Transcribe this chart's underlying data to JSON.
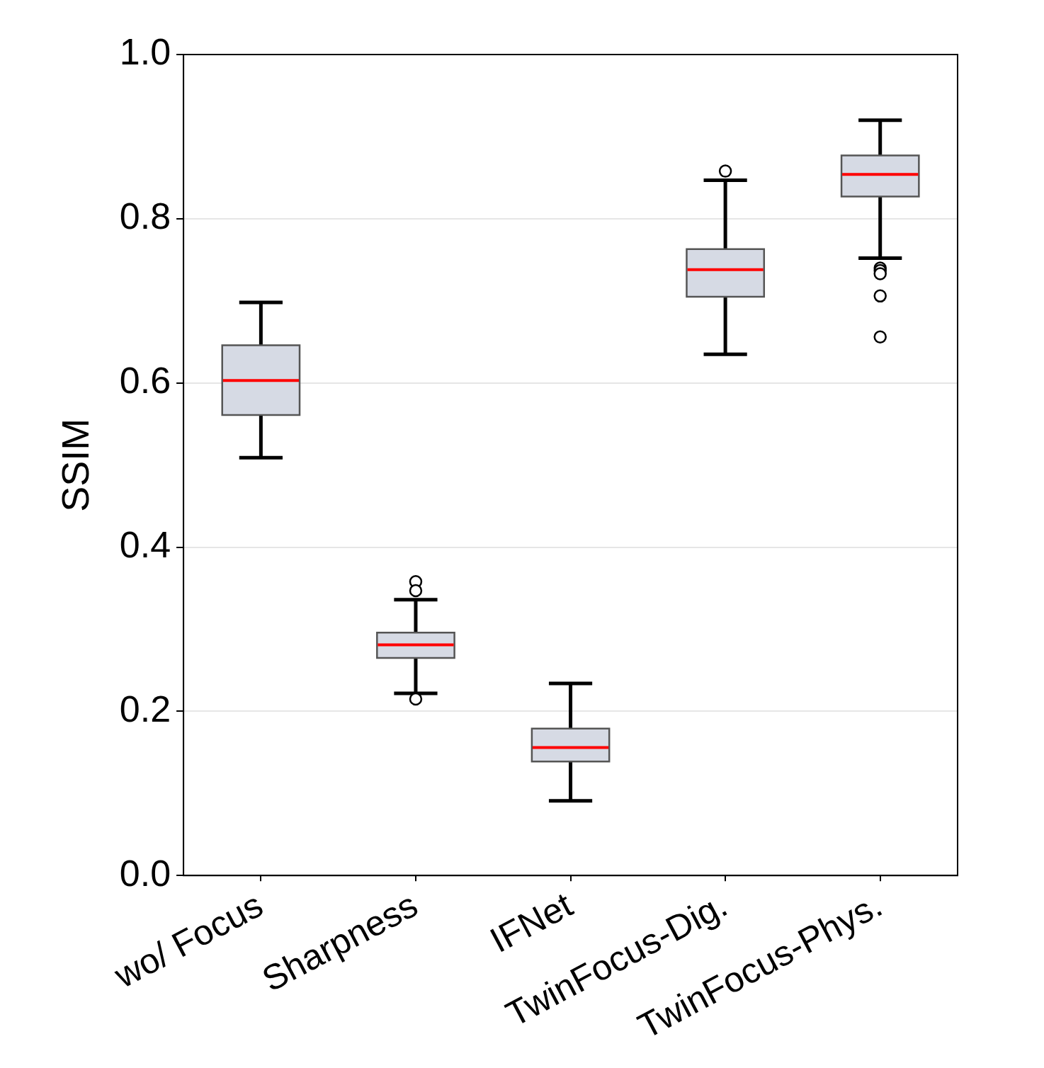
{
  "chart_data": {
    "type": "box",
    "ylabel": "SSIM",
    "categories": [
      "wo/ Focus",
      "Sharpness",
      "IFNet",
      "TwinFocus-Dig.",
      "TwinFocus-Phys."
    ],
    "boxes": [
      {
        "low": 0.509,
        "q1": 0.561,
        "median": 0.603,
        "q3": 0.646,
        "high": 0.698
      },
      {
        "low": 0.222,
        "q1": 0.265,
        "median": 0.281,
        "q3": 0.296,
        "high": 0.336,
        "outliers": [
          0.358,
          0.347,
          0.215
        ]
      },
      {
        "low": 0.091,
        "q1": 0.139,
        "median": 0.156,
        "q3": 0.179,
        "high": 0.234
      },
      {
        "low": 0.635,
        "q1": 0.705,
        "median": 0.738,
        "q3": 0.763,
        "high": 0.847,
        "outliers": [
          0.858
        ]
      },
      {
        "low": 0.752,
        "q1": 0.827,
        "median": 0.854,
        "q3": 0.877,
        "high": 0.92,
        "outliers": [
          0.74,
          0.737,
          0.733,
          0.706,
          0.656
        ]
      }
    ],
    "color": "#d6dae4",
    "ylim": [
      0,
      1
    ],
    "yticks": [
      {
        "value": 0,
        "label": "0.0"
      },
      {
        "value": 0.2,
        "label": "0.2"
      },
      {
        "value": 0.4,
        "label": "0.4"
      },
      {
        "value": 0.6,
        "label": "0.6"
      },
      {
        "value": 0.8,
        "label": "0.8"
      },
      {
        "value": 1,
        "label": "1.0"
      }
    ],
    "grid": "y",
    "legend": false
  }
}
